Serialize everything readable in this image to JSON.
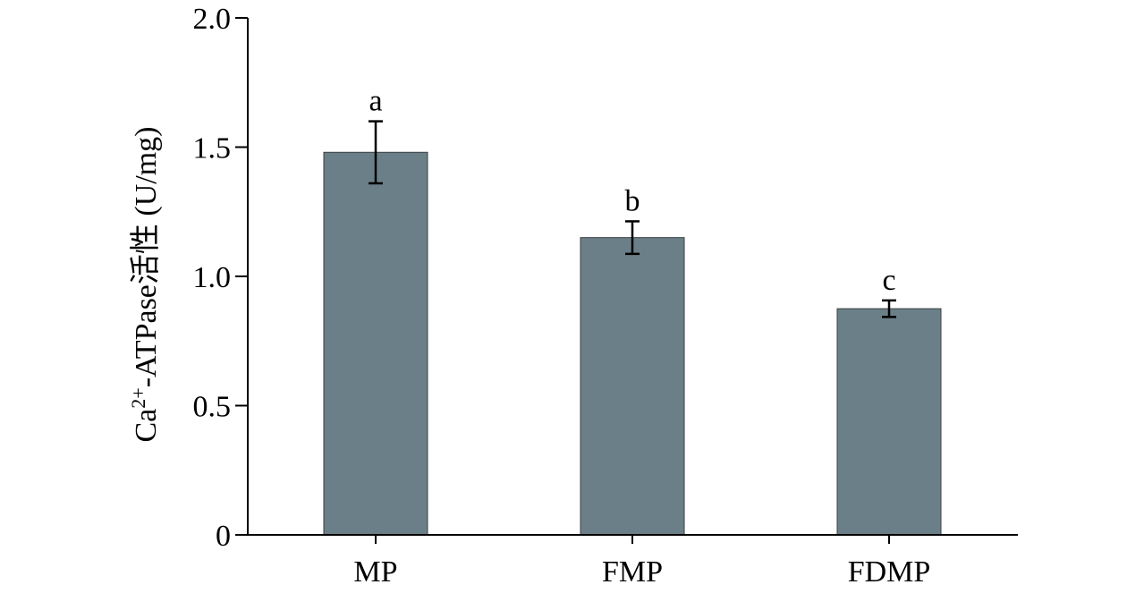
{
  "chart_data": {
    "type": "bar",
    "categories": [
      "MP",
      "FMP",
      "FDMP"
    ],
    "values": [
      1.48,
      1.15,
      0.875
    ],
    "errors": [
      0.12,
      0.063,
      0.032
    ],
    "significance_labels": [
      "a",
      "b",
      "c"
    ],
    "ylabel": {
      "prefix": "Ca",
      "superscript": "2+",
      "suffix": "-ATPase活性 (U/mg)"
    },
    "xlabel": "",
    "ylim": [
      0,
      2.0
    ],
    "yticks": [
      0,
      0.5,
      1.0,
      1.5,
      2.0
    ],
    "ytick_labels": [
      "0",
      "0.5",
      "1.0",
      "1.5",
      "2.0"
    ],
    "bar_color": "#6b7f88",
    "grid": false
  }
}
